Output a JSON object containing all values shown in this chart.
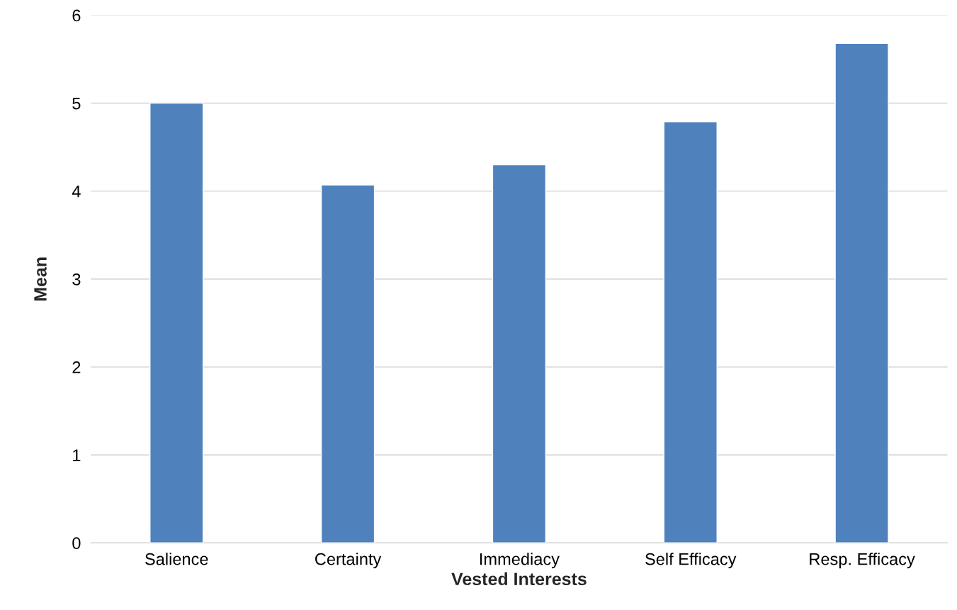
{
  "chart_data": {
    "type": "bar",
    "xlabel": "Vested Interests",
    "ylabel": "Mean",
    "categories": [
      "Salience",
      "Certainty",
      "Immediacy",
      "Self Efficacy",
      "Resp. Efficacy"
    ],
    "values": [
      5.0,
      4.07,
      4.3,
      4.79,
      5.68
    ],
    "color": "#4f81bd",
    "ylim": [
      0,
      6
    ],
    "yticks": [
      0,
      1,
      2,
      3,
      4,
      5,
      6
    ],
    "grid": "y"
  }
}
